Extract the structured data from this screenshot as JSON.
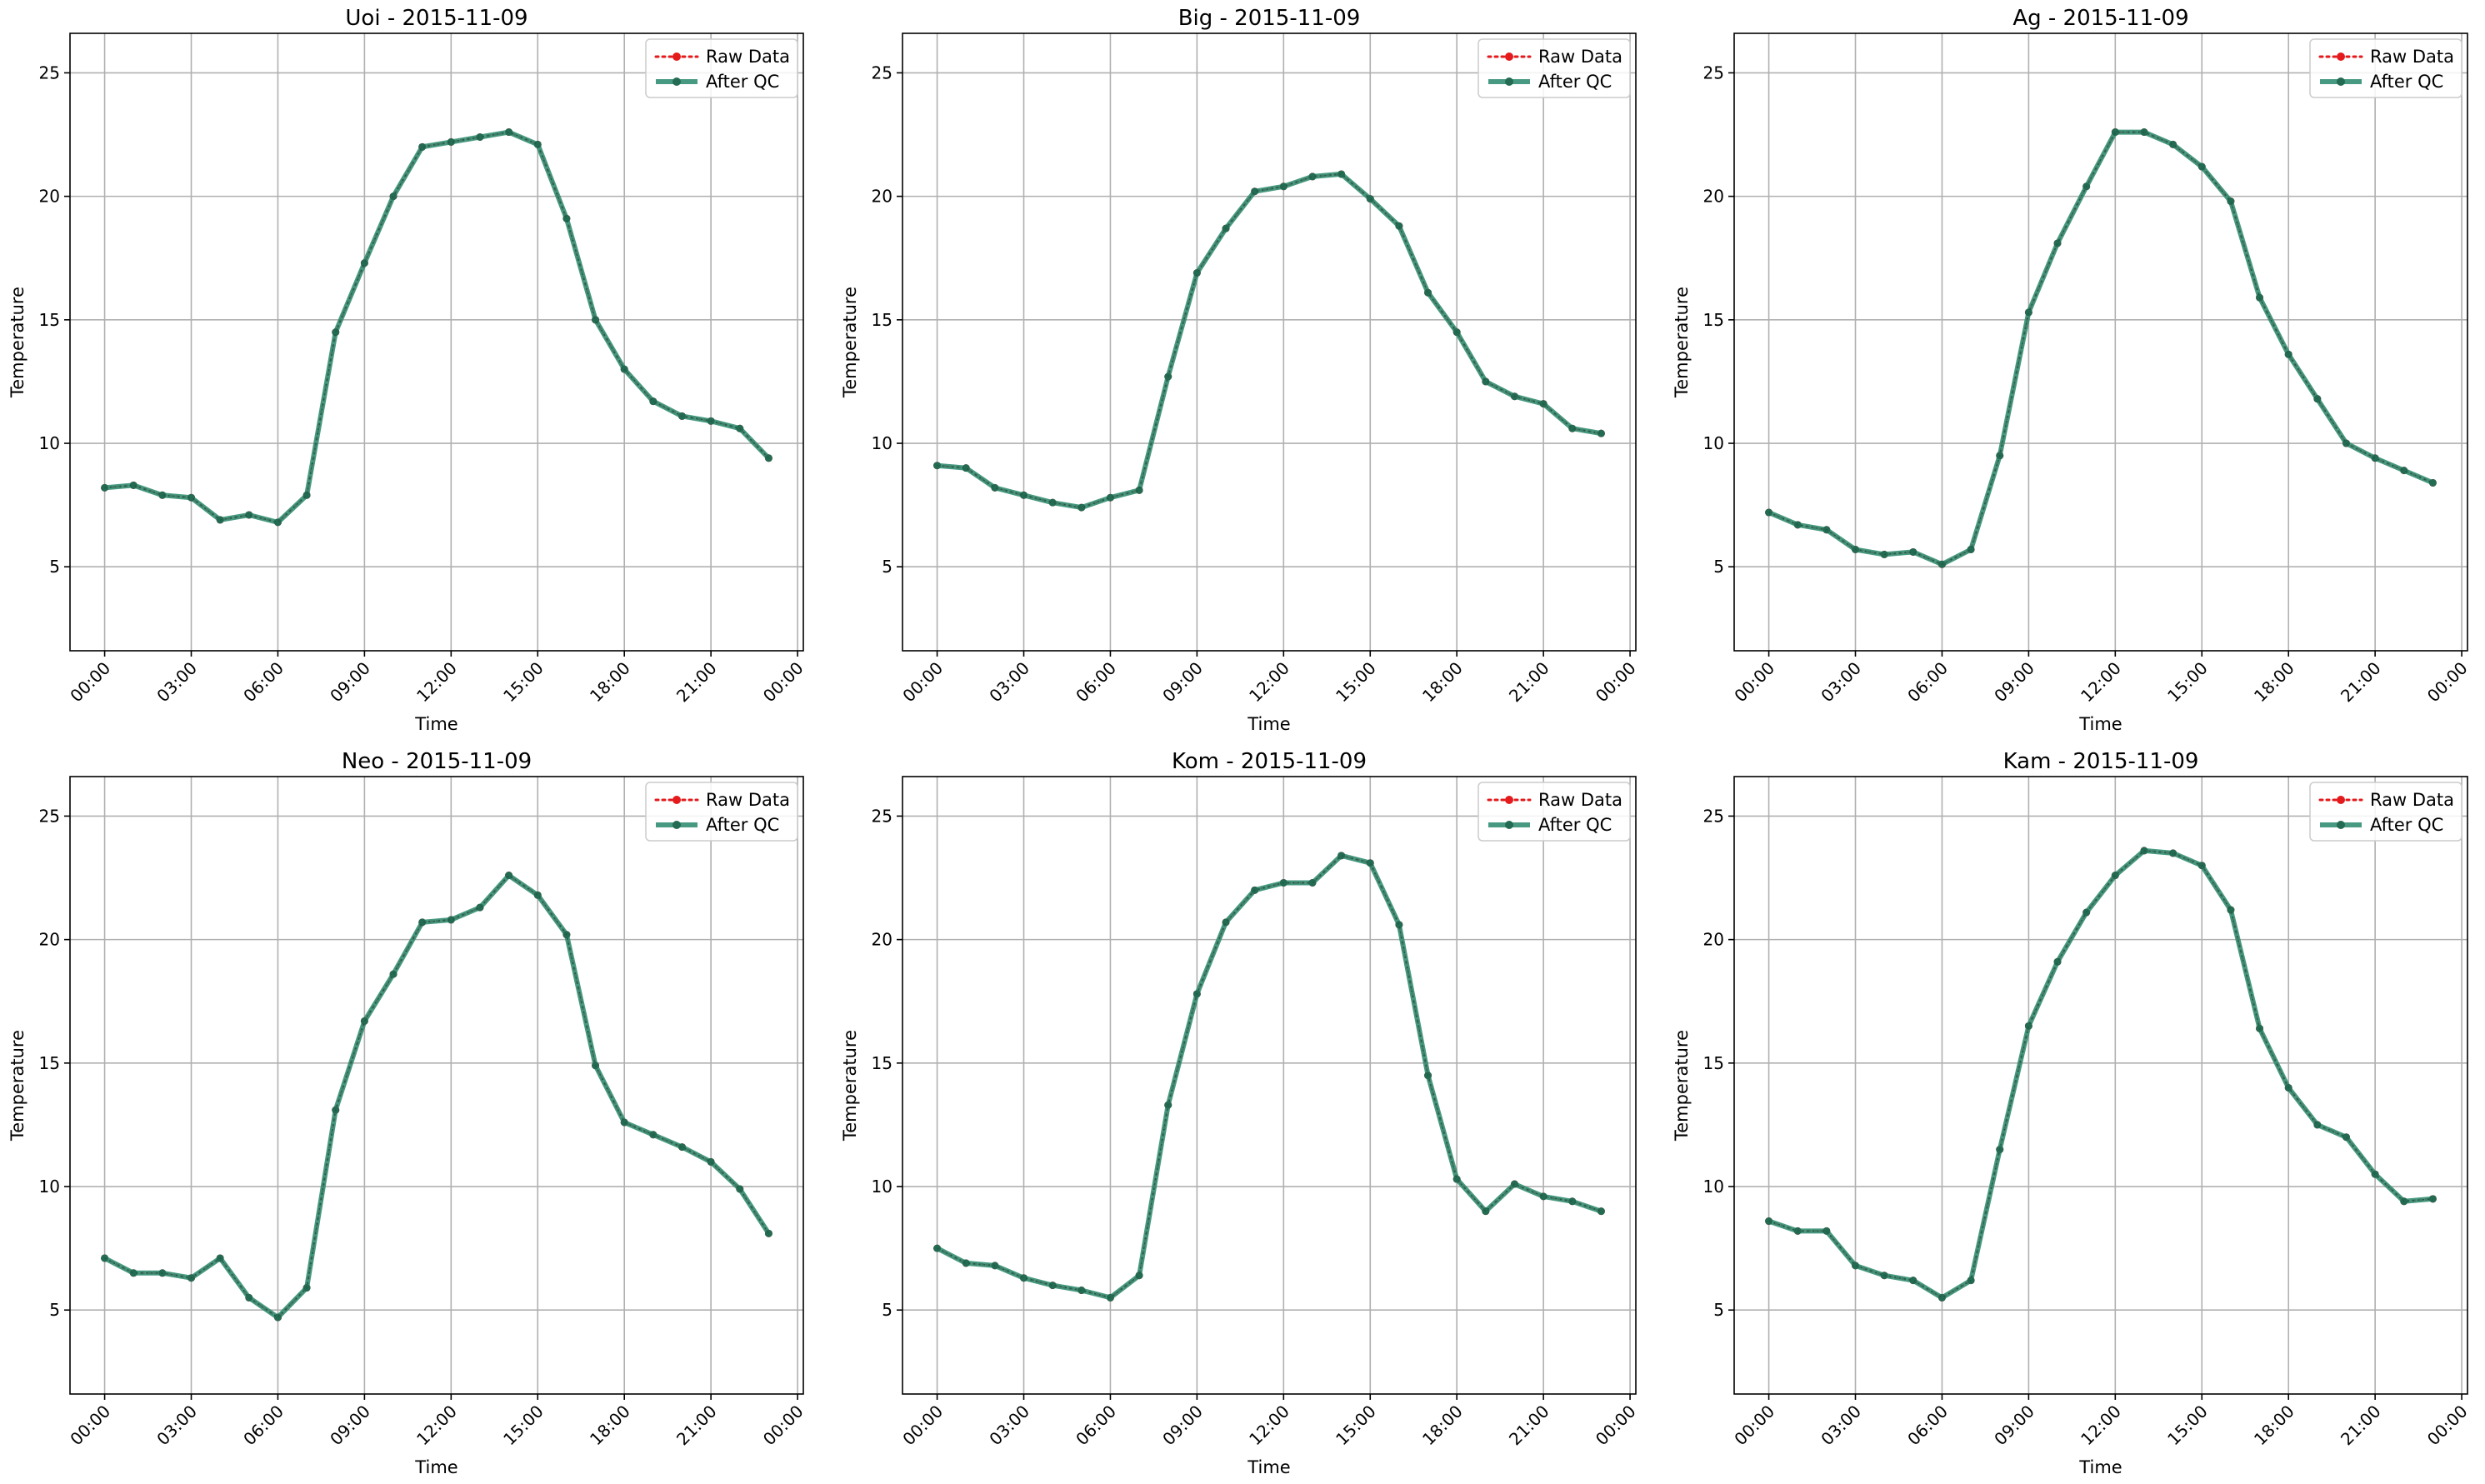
{
  "colors": {
    "raw": "#e41a1c",
    "qc": "#2e8b6f",
    "qc_marker": "#236b52",
    "grid": "#b0b0b0"
  },
  "chart_data": [
    {
      "type": "line",
      "title": "Uoi - 2015-11-09",
      "xlabel": "Time",
      "ylabel": "Temperature",
      "x_ticks": [
        "00:00",
        "03:00",
        "06:00",
        "09:00",
        "12:00",
        "15:00",
        "18:00",
        "21:00",
        "00:00"
      ],
      "y_ticks": [
        5,
        10,
        15,
        20,
        25
      ],
      "xlim": [
        -1.2,
        24.2
      ],
      "ylim": [
        1.6,
        26.6
      ],
      "grid": true,
      "legend_position": "top-right",
      "x_hours": [
        0,
        1,
        2,
        3,
        4,
        5,
        6,
        7,
        8,
        9,
        10,
        11,
        12,
        13,
        14,
        15,
        16,
        17,
        18,
        19,
        20,
        21,
        22,
        23
      ],
      "series": [
        {
          "name": "Raw Data",
          "style": "dotted",
          "values": [
            8.2,
            8.3,
            7.9,
            7.8,
            6.9,
            7.1,
            6.8,
            7.9,
            14.5,
            17.3,
            20.0,
            22.0,
            22.2,
            22.4,
            22.6,
            22.1,
            19.1,
            15.0,
            13.0,
            11.7,
            11.1,
            10.9,
            10.6,
            9.4
          ]
        },
        {
          "name": "After QC",
          "style": "solid",
          "values": [
            8.2,
            8.3,
            7.9,
            7.8,
            6.9,
            7.1,
            6.8,
            7.9,
            14.5,
            17.3,
            20.0,
            22.0,
            22.2,
            22.4,
            22.6,
            22.1,
            19.1,
            15.0,
            13.0,
            11.7,
            11.1,
            10.9,
            10.6,
            9.4
          ]
        }
      ]
    },
    {
      "type": "line",
      "title": "Big - 2015-11-09",
      "xlabel": "Time",
      "ylabel": "Temperature",
      "x_ticks": [
        "00:00",
        "03:00",
        "06:00",
        "09:00",
        "12:00",
        "15:00",
        "18:00",
        "21:00",
        "00:00"
      ],
      "y_ticks": [
        5,
        10,
        15,
        20,
        25
      ],
      "xlim": [
        -1.2,
        24.2
      ],
      "ylim": [
        1.6,
        26.6
      ],
      "grid": true,
      "legend_position": "top-right",
      "x_hours": [
        0,
        1,
        2,
        3,
        4,
        5,
        6,
        7,
        8,
        9,
        10,
        11,
        12,
        13,
        14,
        15,
        16,
        17,
        18,
        19,
        20,
        21,
        22,
        23
      ],
      "series": [
        {
          "name": "Raw Data",
          "style": "dotted",
          "values": [
            9.1,
            9.0,
            8.2,
            7.9,
            7.6,
            7.4,
            7.8,
            8.1,
            12.7,
            16.9,
            18.7,
            20.2,
            20.4,
            20.8,
            20.9,
            19.9,
            18.8,
            16.1,
            14.5,
            12.5,
            11.9,
            11.6,
            10.6,
            10.4
          ]
        },
        {
          "name": "After QC",
          "style": "solid",
          "values": [
            9.1,
            9.0,
            8.2,
            7.9,
            7.6,
            7.4,
            7.8,
            8.1,
            12.7,
            16.9,
            18.7,
            20.2,
            20.4,
            20.8,
            20.9,
            19.9,
            18.8,
            16.1,
            14.5,
            12.5,
            11.9,
            11.6,
            10.6,
            10.4
          ]
        }
      ]
    },
    {
      "type": "line",
      "title": "Ag - 2015-11-09",
      "xlabel": "Time",
      "ylabel": "Temperature",
      "x_ticks": [
        "00:00",
        "03:00",
        "06:00",
        "09:00",
        "12:00",
        "15:00",
        "18:00",
        "21:00",
        "00:00"
      ],
      "y_ticks": [
        5,
        10,
        15,
        20,
        25
      ],
      "xlim": [
        -1.2,
        24.2
      ],
      "ylim": [
        1.6,
        26.6
      ],
      "grid": true,
      "legend_position": "top-right",
      "x_hours": [
        0,
        1,
        2,
        3,
        4,
        5,
        6,
        7,
        8,
        9,
        10,
        11,
        12,
        13,
        14,
        15,
        16,
        17,
        18,
        19,
        20,
        21,
        22,
        23
      ],
      "series": [
        {
          "name": "Raw Data",
          "style": "dotted",
          "values": [
            7.2,
            6.7,
            6.5,
            5.7,
            5.5,
            5.6,
            5.1,
            5.7,
            9.5,
            15.3,
            18.1,
            20.4,
            22.6,
            22.6,
            22.1,
            21.2,
            19.8,
            15.9,
            13.6,
            11.8,
            10.0,
            9.4,
            8.9,
            8.4
          ]
        },
        {
          "name": "After QC",
          "style": "solid",
          "values": [
            7.2,
            6.7,
            6.5,
            5.7,
            5.5,
            5.6,
            5.1,
            5.7,
            9.5,
            15.3,
            18.1,
            20.4,
            22.6,
            22.6,
            22.1,
            21.2,
            19.8,
            15.9,
            13.6,
            11.8,
            10.0,
            9.4,
            8.9,
            8.4
          ]
        }
      ]
    },
    {
      "type": "line",
      "title": "Neo - 2015-11-09",
      "xlabel": "Time",
      "ylabel": "Temperature",
      "x_ticks": [
        "00:00",
        "03:00",
        "06:00",
        "09:00",
        "12:00",
        "15:00",
        "18:00",
        "21:00",
        "00:00"
      ],
      "y_ticks": [
        5,
        10,
        15,
        20,
        25
      ],
      "xlim": [
        -1.2,
        24.2
      ],
      "ylim": [
        1.6,
        26.6
      ],
      "grid": true,
      "legend_position": "top-right",
      "x_hours": [
        0,
        1,
        2,
        3,
        4,
        5,
        6,
        7,
        8,
        9,
        10,
        11,
        12,
        13,
        14,
        15,
        16,
        17,
        18,
        19,
        20,
        21,
        22,
        23
      ],
      "series": [
        {
          "name": "Raw Data",
          "style": "dotted",
          "values": [
            7.1,
            6.5,
            6.5,
            6.3,
            7.1,
            5.5,
            4.7,
            5.9,
            13.1,
            16.7,
            18.6,
            20.7,
            20.8,
            21.3,
            22.6,
            21.8,
            20.2,
            14.9,
            12.6,
            12.1,
            11.6,
            11.0,
            9.9,
            8.1
          ]
        },
        {
          "name": "After QC",
          "style": "solid",
          "values": [
            7.1,
            6.5,
            6.5,
            6.3,
            7.1,
            5.5,
            4.7,
            5.9,
            13.1,
            16.7,
            18.6,
            20.7,
            20.8,
            21.3,
            22.6,
            21.8,
            20.2,
            14.9,
            12.6,
            12.1,
            11.6,
            11.0,
            9.9,
            8.1
          ]
        }
      ]
    },
    {
      "type": "line",
      "title": "Kom - 2015-11-09",
      "xlabel": "Time",
      "ylabel": "Temperature",
      "x_ticks": [
        "00:00",
        "03:00",
        "06:00",
        "09:00",
        "12:00",
        "15:00",
        "18:00",
        "21:00",
        "00:00"
      ],
      "y_ticks": [
        5,
        10,
        15,
        20,
        25
      ],
      "xlim": [
        -1.2,
        24.2
      ],
      "ylim": [
        1.6,
        26.6
      ],
      "grid": true,
      "legend_position": "top-right",
      "x_hours": [
        0,
        1,
        2,
        3,
        4,
        5,
        6,
        7,
        8,
        9,
        10,
        11,
        12,
        13,
        14,
        15,
        16,
        17,
        18,
        19,
        20,
        21,
        22,
        23
      ],
      "series": [
        {
          "name": "Raw Data",
          "style": "dotted",
          "values": [
            7.5,
            6.9,
            6.8,
            6.3,
            6.0,
            5.8,
            5.5,
            6.4,
            13.3,
            17.8,
            20.7,
            22.0,
            22.3,
            22.3,
            23.4,
            23.1,
            20.6,
            14.5,
            10.3,
            9.0,
            10.1,
            9.6,
            9.4,
            9.0
          ]
        },
        {
          "name": "After QC",
          "style": "solid",
          "values": [
            7.5,
            6.9,
            6.8,
            6.3,
            6.0,
            5.8,
            5.5,
            6.4,
            13.3,
            17.8,
            20.7,
            22.0,
            22.3,
            22.3,
            23.4,
            23.1,
            20.6,
            14.5,
            10.3,
            9.0,
            10.1,
            9.6,
            9.4,
            9.0
          ]
        }
      ]
    },
    {
      "type": "line",
      "title": "Kam - 2015-11-09",
      "xlabel": "Time",
      "ylabel": "Temperature",
      "x_ticks": [
        "00:00",
        "03:00",
        "06:00",
        "09:00",
        "12:00",
        "15:00",
        "18:00",
        "21:00",
        "00:00"
      ],
      "y_ticks": [
        5,
        10,
        15,
        20,
        25
      ],
      "xlim": [
        -1.2,
        24.2
      ],
      "ylim": [
        1.6,
        26.6
      ],
      "grid": true,
      "legend_position": "top-right",
      "x_hours": [
        0,
        1,
        2,
        3,
        4,
        5,
        6,
        7,
        8,
        9,
        10,
        11,
        12,
        13,
        14,
        15,
        16,
        17,
        18,
        19,
        20,
        21,
        22,
        23
      ],
      "series": [
        {
          "name": "Raw Data",
          "style": "dotted",
          "values": [
            8.6,
            8.2,
            8.2,
            6.8,
            6.4,
            6.2,
            5.5,
            6.2,
            11.5,
            16.5,
            19.1,
            21.1,
            22.6,
            23.6,
            23.5,
            23.0,
            21.2,
            16.4,
            14.0,
            12.5,
            12.0,
            10.5,
            9.4,
            9.5
          ]
        },
        {
          "name": "After QC",
          "style": "solid",
          "values": [
            8.6,
            8.2,
            8.2,
            6.8,
            6.4,
            6.2,
            5.5,
            6.2,
            11.5,
            16.5,
            19.1,
            21.1,
            22.6,
            23.6,
            23.5,
            23.0,
            21.2,
            16.4,
            14.0,
            12.5,
            12.0,
            10.5,
            9.4,
            9.5
          ]
        }
      ]
    }
  ]
}
